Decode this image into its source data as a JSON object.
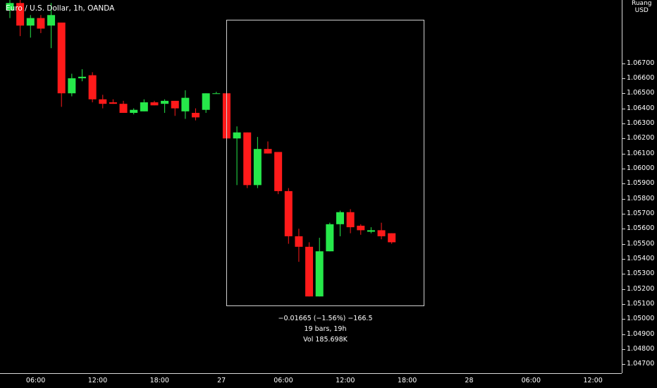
{
  "header": {
    "symbol_title": "Euro / U.S. Dollar, 1h, OANDA",
    "currency_label_line1": "Ruang",
    "currency_label_line2": "USD"
  },
  "colors": {
    "up": "#26e84a",
    "down": "#ff1a1a",
    "axis": "#d9d9d9",
    "background": "#000000"
  },
  "price_axis": {
    "min": 1.0464,
    "max": 1.0712,
    "labels": [
      "1.06700",
      "1.06600",
      "1.06500",
      "1.06400",
      "1.06300",
      "1.06200",
      "1.06100",
      "1.06000",
      "1.05900",
      "1.05800",
      "1.05700",
      "1.05600",
      "1.05500",
      "1.05400",
      "1.05300",
      "1.05200",
      "1.05100",
      "1.05000",
      "1.04900",
      "1.04800",
      "1.04700"
    ]
  },
  "time_axis": {
    "labels": [
      {
        "text": "06:00",
        "bar": 2.5
      },
      {
        "text": "12:00",
        "bar": 8.5
      },
      {
        "text": "18:00",
        "bar": 14.5
      },
      {
        "text": "27",
        "bar": 20.5
      },
      {
        "text": "06:00",
        "bar": 26.5
      },
      {
        "text": "12:00",
        "bar": 32.5
      },
      {
        "text": "18:00",
        "bar": 38.5
      },
      {
        "text": "28",
        "bar": 44.5
      },
      {
        "text": "06:00",
        "bar": 50.5
      },
      {
        "text": "12:00",
        "bar": 56.5
      }
    ]
  },
  "measure": {
    "line1": "−0.01665 (−1.56%) −166.5",
    "line2": "19 bars, 19h",
    "line3": "Vol 185.698K"
  },
  "chart_data": {
    "type": "candlestick",
    "ylim": [
      1.0464,
      1.0712
    ],
    "candles": [
      {
        "o": 1.0705,
        "h": 1.0714,
        "l": 1.07,
        "c": 1.071
      },
      {
        "o": 1.071,
        "h": 1.0712,
        "l": 1.0688,
        "c": 1.0695
      },
      {
        "o": 1.0695,
        "h": 1.0702,
        "l": 1.0687,
        "c": 1.07
      },
      {
        "o": 1.07,
        "h": 1.0702,
        "l": 1.069,
        "c": 1.0693
      },
      {
        "o": 1.0695,
        "h": 1.071,
        "l": 1.068,
        "c": 1.0702
      },
      {
        "o": 1.0697,
        "h": 1.0697,
        "l": 1.0641,
        "c": 1.065
      },
      {
        "o": 1.065,
        "h": 1.0663,
        "l": 1.0648,
        "c": 1.066
      },
      {
        "o": 1.066,
        "h": 1.0666,
        "l": 1.0658,
        "c": 1.0661
      },
      {
        "o": 1.0662,
        "h": 1.0664,
        "l": 1.0644,
        "c": 1.0646
      },
      {
        "o": 1.0646,
        "h": 1.0649,
        "l": 1.064,
        "c": 1.0643
      },
      {
        "o": 1.0644,
        "h": 1.0646,
        "l": 1.0643,
        "c": 1.0643
      },
      {
        "o": 1.0643,
        "h": 1.0645,
        "l": 1.0637,
        "c": 1.0637
      },
      {
        "o": 1.0637,
        "h": 1.064,
        "l": 1.0636,
        "c": 1.0639
      },
      {
        "o": 1.0638,
        "h": 1.0646,
        "l": 1.0638,
        "c": 1.0644
      },
      {
        "o": 1.0644,
        "h": 1.0645,
        "l": 1.0642,
        "c": 1.0642
      },
      {
        "o": 1.0643,
        "h": 1.0646,
        "l": 1.0637,
        "c": 1.0645
      },
      {
        "o": 1.0645,
        "h": 1.0645,
        "l": 1.0635,
        "c": 1.064
      },
      {
        "o": 1.0638,
        "h": 1.0652,
        "l": 1.0633,
        "c": 1.0647
      },
      {
        "o": 1.0637,
        "h": 1.064,
        "l": 1.0632,
        "c": 1.0634
      },
      {
        "o": 1.0639,
        "h": 1.065,
        "l": 1.0637,
        "c": 1.065
      },
      {
        "o": 1.065,
        "h": 1.0651,
        "l": 1.065,
        "c": 1.065
      },
      {
        "o": 1.065,
        "h": 1.065,
        "l": 1.062,
        "c": 1.062
      },
      {
        "o": 1.062,
        "h": 1.0628,
        "l": 1.0589,
        "c": 1.0624
      },
      {
        "o": 1.0624,
        "h": 1.0624,
        "l": 1.0587,
        "c": 1.0589
      },
      {
        "o": 1.0589,
        "h": 1.0621,
        "l": 1.0587,
        "c": 1.0613
      },
      {
        "o": 1.0613,
        "h": 1.0618,
        "l": 1.061,
        "c": 1.061
      },
      {
        "o": 1.0611,
        "h": 1.0611,
        "l": 1.0583,
        "c": 1.0585
      },
      {
        "o": 1.0585,
        "h": 1.0587,
        "l": 1.055,
        "c": 1.0555
      },
      {
        "o": 1.0555,
        "h": 1.056,
        "l": 1.0538,
        "c": 1.0548
      },
      {
        "o": 1.0548,
        "h": 1.0551,
        "l": 1.0515,
        "c": 1.0515
      },
      {
        "o": 1.0515,
        "h": 1.0554,
        "l": 1.0515,
        "c": 1.0545
      },
      {
        "o": 1.0545,
        "h": 1.0564,
        "l": 1.0545,
        "c": 1.0563
      },
      {
        "o": 1.0563,
        "h": 1.0572,
        "l": 1.0555,
        "c": 1.0571
      },
      {
        "o": 1.0571,
        "h": 1.0573,
        "l": 1.0557,
        "c": 1.0561
      },
      {
        "o": 1.0562,
        "h": 1.0563,
        "l": 1.0556,
        "c": 1.0559
      },
      {
        "o": 1.0558,
        "h": 1.0561,
        "l": 1.0557,
        "c": 1.0559
      },
      {
        "o": 1.0559,
        "h": 1.0564,
        "l": 1.0553,
        "c": 1.0555
      },
      {
        "o": 1.0557,
        "h": 1.0557,
        "l": 1.055,
        "c": 1.0551
      }
    ]
  }
}
